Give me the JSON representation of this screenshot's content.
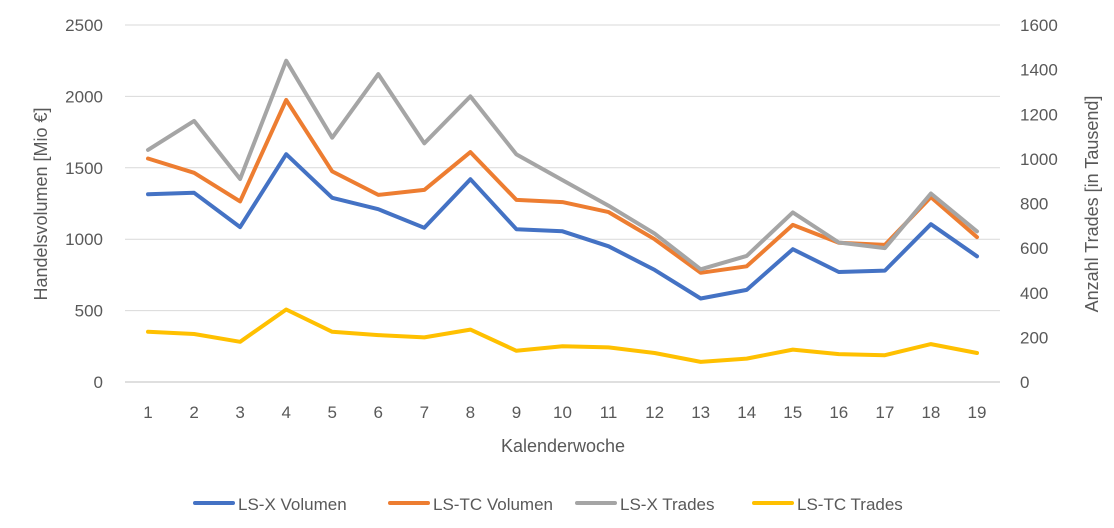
{
  "chart_data": {
    "type": "line",
    "xlabel": "Kalenderwoche",
    "ylabel": "Handelsvolumen [Mio €]",
    "y2label": "Anzahl Trades [in Tausend]",
    "categories": [
      "1",
      "2",
      "3",
      "4",
      "5",
      "6",
      "7",
      "8",
      "9",
      "10",
      "11",
      "12",
      "13",
      "14",
      "15",
      "16",
      "17",
      "18",
      "19"
    ],
    "ylim": [
      0,
      2500
    ],
    "y_ticks": [
      "0",
      "500",
      "1000",
      "1500",
      "2000",
      "2500"
    ],
    "y2lim": [
      0,
      1600
    ],
    "y2_ticks": [
      "0",
      "200",
      "400",
      "600",
      "800",
      "1000",
      "1200",
      "1400",
      "1600"
    ],
    "grid": true,
    "legend_position": "bottom",
    "series": [
      {
        "name": "LS-X Volumen",
        "axis": "left",
        "color": "#4472c4",
        "values": [
          1315,
          1325,
          1085,
          1595,
          1290,
          1210,
          1080,
          1420,
          1070,
          1055,
          950,
          785,
          585,
          645,
          930,
          770,
          780,
          1105,
          880
        ]
      },
      {
        "name": "LS-TC Volumen",
        "axis": "left",
        "color": "#ed7d31",
        "values": [
          1565,
          1465,
          1265,
          1975,
          1475,
          1310,
          1345,
          1610,
          1275,
          1260,
          1190,
          1000,
          765,
          810,
          1100,
          975,
          960,
          1295,
          1015
        ]
      },
      {
        "name": "LS-X Trades",
        "axis": "right",
        "color": "#a5a5a5",
        "values": [
          1040,
          1170,
          910,
          1440,
          1095,
          1380,
          1070,
          1280,
          1020,
          905,
          790,
          665,
          505,
          565,
          760,
          625,
          600,
          845,
          675
        ]
      },
      {
        "name": "LS-TC Trades",
        "axis": "right",
        "color": "#ffc000",
        "values": [
          225,
          215,
          180,
          325,
          225,
          210,
          200,
          235,
          140,
          160,
          155,
          130,
          90,
          105,
          145,
          125,
          120,
          170,
          130
        ]
      }
    ]
  }
}
